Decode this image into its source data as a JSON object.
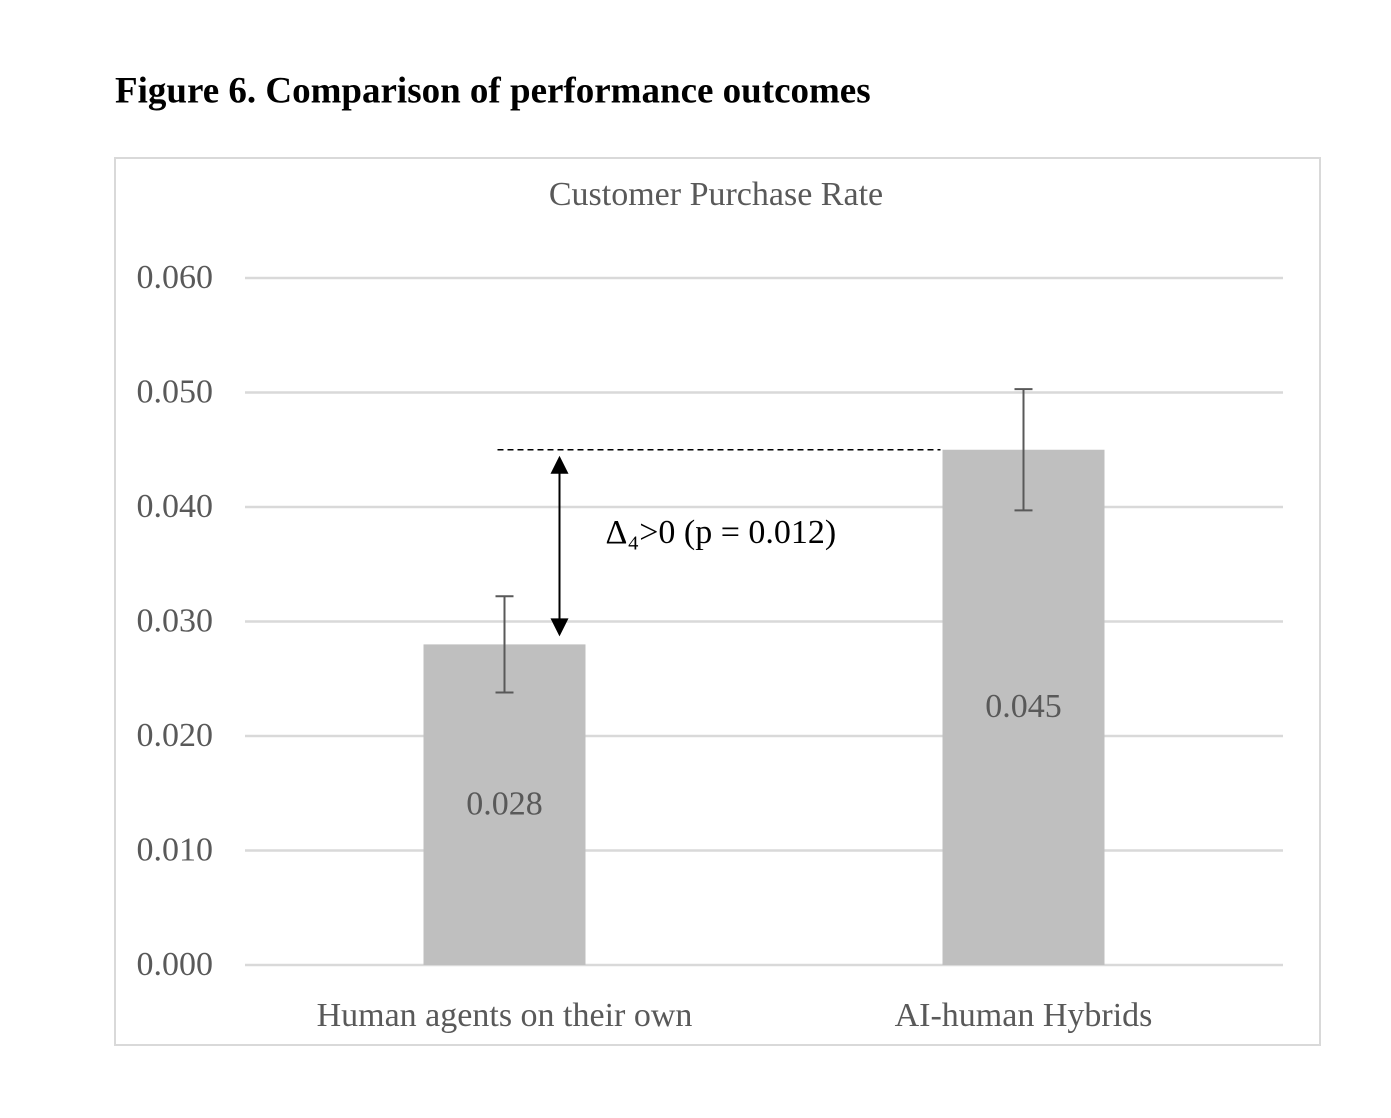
{
  "chart_data": {
    "type": "bar",
    "figure_title": "Figure 6. Comparison of performance outcomes",
    "title": "Customer Purchase Rate",
    "categories": [
      "Human agents on their own",
      "AI-human Hybrids"
    ],
    "values": [
      0.028,
      0.045
    ],
    "errors": [
      0.0042,
      0.0053
    ],
    "color": "#bfbfbf",
    "ylim": [
      0,
      0.06
    ],
    "yticks": [
      {
        "value": 0,
        "label": "0.000"
      },
      {
        "value": 0.01,
        "label": "0.010"
      },
      {
        "value": 0.02,
        "label": "0.020"
      },
      {
        "value": 0.03,
        "label": "0.030"
      },
      {
        "value": 0.04,
        "label": "0.040"
      },
      {
        "value": 0.05,
        "label": "0.050"
      },
      {
        "value": 0.06,
        "label": "0.060"
      }
    ],
    "grid": true,
    "annotation": "Δ₄>0 (p = 0.012)"
  }
}
